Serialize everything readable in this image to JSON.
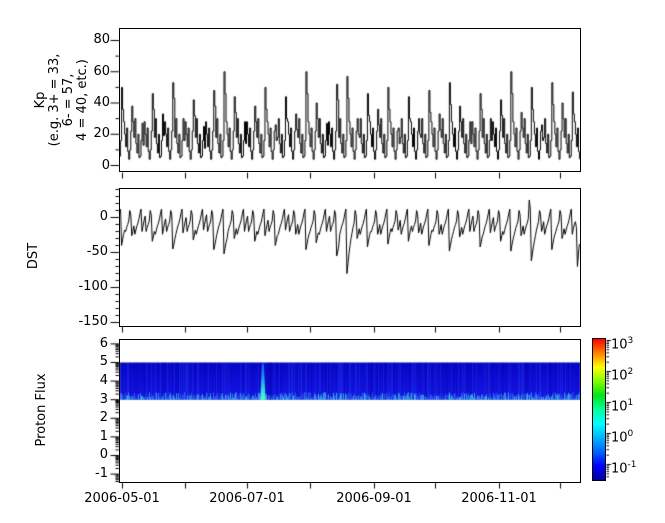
{
  "x_axis": {
    "start_date": "2006-04-30",
    "end_date": "2006-12-11",
    "span_days": 225,
    "month_tick_days": [
      1,
      32,
      62,
      93,
      124,
      154,
      185,
      215
    ],
    "tick_labels": [
      "2006-05-01",
      "2006-07-01",
      "2006-09-01",
      "2006-11-01"
    ],
    "labeled_tick_days": [
      1,
      62,
      124,
      185
    ]
  },
  "colorbar": {
    "scale": "log",
    "range_top": 1000,
    "range_bottom": 0.03,
    "ticks": [
      {
        "base": "10",
        "exp": "3"
      },
      {
        "base": "10",
        "exp": "2"
      },
      {
        "base": "10",
        "exp": "1"
      },
      {
        "base": "10",
        "exp": "0"
      },
      {
        "base": "10",
        "exp": "-1"
      }
    ],
    "gradient": [
      "#ff0000",
      "#ff8000",
      "#ffff00",
      "#80ff00",
      "#00e617",
      "#00ff9f",
      "#00ffff",
      "#00b4ff",
      "#0064ff",
      "#0000ff",
      "#00009f"
    ]
  },
  "chart_data": [
    {
      "type": "line",
      "series_name": "Kp",
      "ylabel_lines": [
        "Kp",
        "(e.g. 3+ = 33,",
        "6- = 57,",
        "4 = 40, etc.)"
      ],
      "yticks": [
        0,
        20,
        40,
        60,
        80
      ],
      "yticks_minor": [
        10,
        30,
        50,
        70
      ],
      "ylim": [
        -4.5,
        87.5
      ],
      "line_color": "#000000",
      "x_start_day": 0,
      "x_step_days": 0.5,
      "values": [
        6,
        16,
        50,
        36,
        28,
        20,
        12,
        24,
        9,
        4,
        10,
        22,
        38,
        28,
        18,
        30,
        14,
        8,
        20,
        5,
        6,
        16,
        27,
        13,
        28,
        20,
        12,
        24,
        9,
        4,
        10,
        22,
        46,
        36,
        18,
        30,
        14,
        8,
        20,
        5,
        6,
        16,
        33,
        19,
        28,
        20,
        12,
        24,
        9,
        4,
        10,
        22,
        53,
        43,
        18,
        30,
        14,
        8,
        20,
        5,
        6,
        16,
        30,
        16,
        28,
        20,
        12,
        24,
        9,
        4,
        10,
        22,
        42,
        32,
        18,
        30,
        14,
        8,
        20,
        5,
        6,
        16,
        25,
        11,
        28,
        20,
        12,
        24,
        9,
        4,
        10,
        22,
        48,
        38,
        18,
        30,
        14,
        8,
        20,
        5,
        6,
        16,
        60,
        46,
        28,
        20,
        12,
        24,
        9,
        4,
        10,
        22,
        44,
        34,
        18,
        30,
        14,
        8,
        20,
        5,
        6,
        16,
        28,
        14,
        28,
        20,
        12,
        24,
        9,
        4,
        10,
        22,
        38,
        28,
        18,
        30,
        14,
        8,
        20,
        5,
        6,
        16,
        50,
        36,
        28,
        20,
        12,
        24,
        9,
        4,
        10,
        22,
        26,
        16,
        18,
        30,
        14,
        8,
        20,
        5,
        6,
        16,
        44,
        30,
        28,
        20,
        12,
        24,
        9,
        4,
        10,
        22,
        33,
        23,
        18,
        30,
        14,
        8,
        20,
        5,
        6,
        16,
        60,
        46,
        28,
        20,
        12,
        24,
        9,
        4,
        10,
        22,
        40,
        30,
        18,
        30,
        14,
        8,
        20,
        5,
        6,
        16,
        27,
        13,
        28,
        20,
        12,
        24,
        9,
        4,
        10,
        22,
        52,
        42,
        18,
        30,
        14,
        8,
        20,
        5,
        6,
        16,
        57,
        43,
        28,
        20,
        12,
        24,
        9,
        4,
        10,
        22,
        30,
        20,
        18,
        30,
        14,
        8,
        20,
        5,
        6,
        16,
        46,
        32,
        28,
        20,
        12,
        24,
        9,
        4,
        10,
        22,
        36,
        26,
        18,
        30,
        14,
        8,
        20,
        5,
        6,
        16,
        50,
        36,
        28,
        20,
        12,
        24,
        9,
        4,
        10,
        22,
        24,
        14,
        18,
        30,
        14,
        8,
        20,
        5,
        6,
        16,
        44,
        30,
        28,
        20,
        12,
        24,
        9,
        4,
        10,
        22,
        30,
        20,
        18,
        30,
        14,
        8,
        20,
        5,
        6,
        16,
        48,
        34,
        28,
        20,
        12,
        24,
        9,
        4,
        10,
        22,
        33,
        23,
        18,
        30,
        14,
        8,
        20,
        5,
        6,
        16,
        53,
        39,
        28,
        20,
        12,
        24,
        9,
        4,
        10,
        22,
        38,
        28,
        18,
        30,
        14,
        8,
        20,
        5,
        6,
        16,
        28,
        14,
        28,
        20,
        12,
        24,
        9,
        4,
        10,
        22,
        46,
        36,
        18,
        30,
        14,
        8,
        20,
        5,
        6,
        16,
        30,
        16,
        28,
        20,
        12,
        24,
        9,
        4,
        10,
        22,
        42,
        32,
        18,
        30,
        14,
        8,
        20,
        5,
        6,
        16,
        60,
        46,
        28,
        20,
        12,
        24,
        9,
        4,
        10,
        22,
        34,
        24,
        18,
        30,
        14,
        8,
        20,
        5,
        6,
        16,
        50,
        36,
        28,
        20,
        12,
        24,
        9,
        4,
        10,
        22,
        26,
        16,
        18,
        30,
        14,
        8,
        20,
        5,
        6,
        16,
        53,
        39,
        28,
        20,
        12,
        24,
        9,
        4,
        10,
        22,
        40,
        30,
        18,
        30,
        14,
        8,
        20,
        5,
        6,
        16,
        47,
        33,
        28,
        20,
        12,
        24,
        9,
        4
      ]
    },
    {
      "type": "line",
      "series_name": "DST",
      "ylabel": "DST",
      "yticks": [
        0,
        -50,
        -100,
        -150
      ],
      "yticks_minor_step": 10,
      "ylim": [
        -155.7,
        41.4
      ],
      "line_color": "#000000",
      "x_start_day": 0,
      "x_step_days": 0.5,
      "values": [
        6,
        12,
        -40,
        -32,
        -24,
        -18,
        -20,
        -14,
        -10,
        -5,
        10,
        4,
        -26,
        -20,
        -12,
        -24,
        -18,
        -12,
        -8,
        -2,
        6,
        12,
        -20,
        -12,
        -4,
        2,
        -20,
        -14,
        -10,
        -5,
        10,
        4,
        -34,
        -28,
        -20,
        -24,
        -18,
        -12,
        -8,
        -2,
        6,
        12,
        -24,
        -16,
        -8,
        -2,
        -20,
        -14,
        -10,
        -5,
        10,
        4,
        -45,
        -39,
        -31,
        -24,
        -18,
        -12,
        -8,
        -2,
        6,
        12,
        -22,
        -14,
        -6,
        0,
        -20,
        -14,
        -10,
        -5,
        10,
        4,
        -32,
        -26,
        -18,
        -24,
        -18,
        -12,
        -8,
        -2,
        6,
        12,
        -18,
        -10,
        -2,
        4,
        -20,
        -14,
        -10,
        -5,
        10,
        4,
        -46,
        -40,
        -32,
        -24,
        -18,
        -12,
        -8,
        -2,
        6,
        12,
        -52,
        -44,
        -36,
        -30,
        -20,
        -14,
        -10,
        -5,
        10,
        4,
        -30,
        -24,
        -16,
        -24,
        -18,
        -12,
        -8,
        -2,
        6,
        12,
        -20,
        -12,
        -4,
        2,
        -20,
        -14,
        -10,
        -5,
        10,
        4,
        -34,
        -28,
        -20,
        -24,
        -18,
        -12,
        -8,
        -2,
        6,
        12,
        -26,
        -18,
        -10,
        -4,
        -20,
        -14,
        -10,
        -5,
        10,
        4,
        -40,
        -34,
        -26,
        -24,
        -18,
        -12,
        -8,
        -2,
        6,
        12,
        -18,
        -10,
        -2,
        4,
        -20,
        -14,
        -10,
        -5,
        10,
        4,
        -24,
        -18,
        -10,
        -24,
        -18,
        -12,
        -8,
        -2,
        6,
        12,
        -46,
        -38,
        -30,
        -24,
        -20,
        -14,
        -10,
        -5,
        10,
        4,
        -36,
        -30,
        -22,
        -24,
        -18,
        -12,
        -8,
        -2,
        6,
        12,
        -20,
        -12,
        -4,
        2,
        -20,
        -14,
        -10,
        -5,
        10,
        4,
        -55,
        -49,
        -41,
        -24,
        -18,
        -12,
        -8,
        -2,
        6,
        12,
        -80,
        -66,
        -52,
        -40,
        -30,
        -22,
        -14,
        -8,
        10,
        4,
        -30,
        -24,
        -16,
        -24,
        -18,
        -12,
        -8,
        -2,
        6,
        12,
        -42,
        -34,
        -26,
        -20,
        -20,
        -14,
        -10,
        -5,
        10,
        4,
        -24,
        -18,
        -10,
        -24,
        -18,
        -12,
        -8,
        -2,
        6,
        12,
        -38,
        -30,
        -22,
        -16,
        -20,
        -14,
        -10,
        -5,
        10,
        4,
        -18,
        -12,
        -4,
        -24,
        -18,
        -12,
        -8,
        -2,
        6,
        12,
        -34,
        -26,
        -18,
        -12,
        -20,
        -14,
        -10,
        -5,
        10,
        4,
        -22,
        -16,
        -8,
        -24,
        -18,
        -12,
        -8,
        -2,
        6,
        12,
        -40,
        -32,
        -24,
        -18,
        -20,
        -14,
        -10,
        -5,
        10,
        4,
        -24,
        -18,
        -10,
        -24,
        -18,
        -12,
        -8,
        -2,
        6,
        12,
        -48,
        -40,
        -32,
        -26,
        -20,
        -14,
        -10,
        -5,
        10,
        4,
        -28,
        -22,
        -14,
        -24,
        -18,
        -12,
        -8,
        -2,
        6,
        12,
        -20,
        -12,
        -4,
        2,
        -20,
        -14,
        -10,
        -5,
        10,
        4,
        -42,
        -36,
        -28,
        -24,
        -18,
        -12,
        -8,
        -2,
        6,
        12,
        -22,
        -14,
        -6,
        0,
        -20,
        -14,
        -10,
        -5,
        10,
        4,
        -34,
        -28,
        -20,
        -24,
        -18,
        -12,
        -8,
        -2,
        6,
        12,
        -48,
        -40,
        -32,
        -26,
        -20,
        -14,
        -10,
        -5,
        10,
        4,
        -26,
        -20,
        -12,
        -24,
        -18,
        -12,
        -8,
        -2,
        25,
        12,
        -62,
        -52,
        -42,
        -34,
        -26,
        -18,
        -12,
        -6,
        10,
        4,
        -20,
        -14,
        -6,
        -24,
        -18,
        -12,
        -8,
        -2,
        6,
        12,
        -46,
        -38,
        -30,
        -24,
        -20,
        -14,
        -10,
        -5,
        10,
        4,
        -30,
        -24,
        -16,
        -24,
        -18,
        -12,
        -8,
        -2,
        6,
        12,
        -24,
        -16,
        -10,
        -6,
        -14,
        -70,
        -52,
        -38
      ]
    },
    {
      "type": "heatmap",
      "series_name": "Proton Flux",
      "ylabel": "Proton Flux",
      "yticks": [
        -1,
        0,
        1,
        2,
        3,
        4,
        5,
        6
      ],
      "ylim": [
        -1.42,
        6.26
      ],
      "band_y_range": [
        3,
        5
      ],
      "background_flux": 0.07,
      "bottom_edge_flux": 0.2,
      "event": {
        "day": 70,
        "date": "2006-07-09",
        "peak_flux": 6,
        "width_days": 1.5
      }
    }
  ]
}
